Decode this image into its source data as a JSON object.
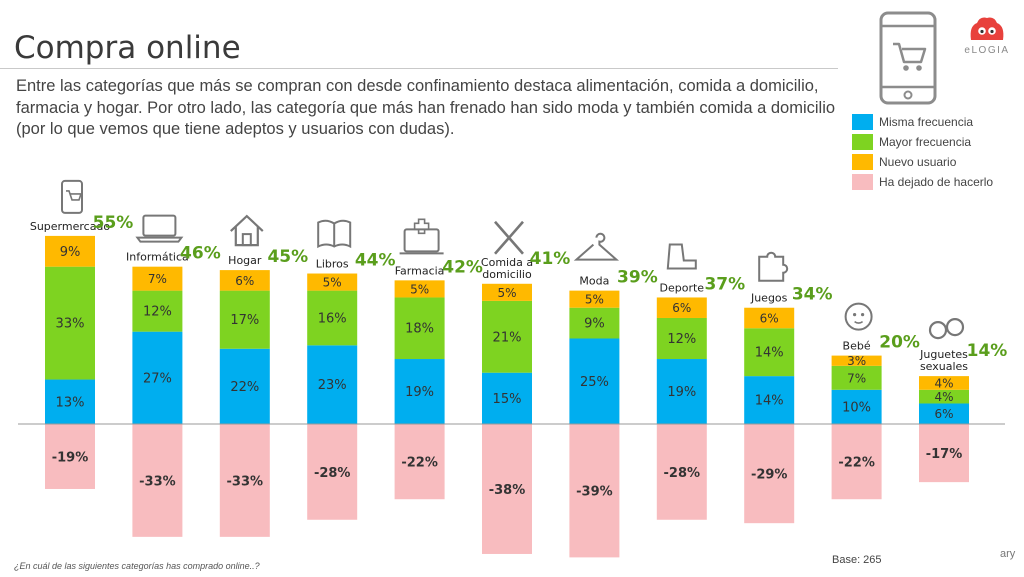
{
  "header": {
    "title": "Compra online",
    "description": "Entre las categorías que más se compran con desde confinamiento destaca alimentación, comida a domicilio, farmacia y hogar. Por otro lado, las categoría que más han frenado han sido moda y también comida a domicilio (por lo que vemos que tiene adeptos y usuarios con dudas)."
  },
  "brand": {
    "name": "eLOGIA"
  },
  "footer": {
    "question": "¿En cuál de las siguientes categorías has comprado online..?",
    "base": "Base: 265",
    "corner_text": "ary"
  },
  "colors": {
    "misma": "#00aeef",
    "mayor": "#7ed321",
    "nuevo": "#ffb900",
    "dejado": "#f8bcbf",
    "total": "#5a9e1c"
  },
  "chart_data": {
    "type": "bar",
    "subtype": "diverging-stacked",
    "categories": [
      "Supermercado",
      "Informática",
      "Hogar",
      "Libros",
      "Farmacia",
      "Comida a domicilio",
      "Moda",
      "Deporte",
      "Juegos",
      "Bebé",
      "Juguetes sexuales"
    ],
    "series": [
      {
        "name": "Misma frecuencia",
        "values": [
          13,
          27,
          22,
          23,
          19,
          15,
          25,
          19,
          14,
          10,
          6
        ]
      },
      {
        "name": "Mayor  frecuencia",
        "values": [
          33,
          12,
          17,
          16,
          18,
          21,
          9,
          12,
          14,
          7,
          4
        ]
      },
      {
        "name": "Nuevo usuario",
        "values": [
          9,
          7,
          6,
          5,
          5,
          5,
          5,
          6,
          6,
          3,
          4
        ]
      },
      {
        "name": "Ha dejado de hacerlo",
        "values": [
          -19,
          -33,
          -33,
          -28,
          -22,
          -38,
          -39,
          -28,
          -29,
          -22,
          -17
        ]
      }
    ],
    "totals": [
      55,
      46,
      45,
      44,
      42,
      41,
      39,
      37,
      34,
      20,
      14
    ],
    "value_suffix": "%",
    "ylim": [
      -40,
      60
    ],
    "legend": "right",
    "grid": false
  }
}
